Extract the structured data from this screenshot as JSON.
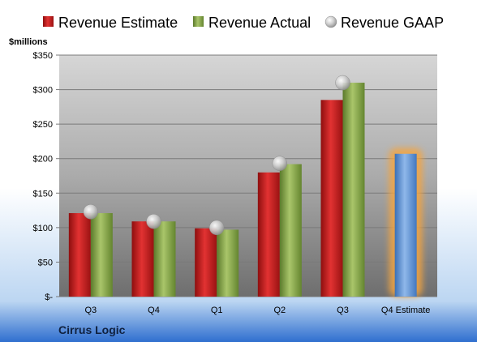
{
  "chart_data": {
    "type": "bar",
    "ylabel": "$millions",
    "ylim": [
      0,
      350
    ],
    "y_ticks": [
      {
        "value": 0,
        "label": "$-"
      },
      {
        "value": 50,
        "label": "$50"
      },
      {
        "value": 100,
        "label": "$100"
      },
      {
        "value": 150,
        "label": "$150"
      },
      {
        "value": 200,
        "label": "$200"
      },
      {
        "value": 250,
        "label": "$250"
      },
      {
        "value": 300,
        "label": "$300"
      },
      {
        "value": 350,
        "label": "$350"
      }
    ],
    "categories": [
      "Q3",
      "Q4",
      "Q1",
      "Q2",
      "Q3",
      "Q4 Estimate"
    ],
    "series": [
      {
        "name": "Revenue Estimate",
        "kind": "bar",
        "color": "#cc1c1c",
        "values": [
          121,
          109,
          99,
          180,
          285,
          null
        ]
      },
      {
        "name": "Revenue Actual",
        "kind": "bar",
        "color": "#8aaa48",
        "values": [
          121,
          109,
          97,
          192,
          310,
          null
        ]
      },
      {
        "name": "Revenue GAAP",
        "kind": "marker",
        "color": "#b8b8b8",
        "values": [
          123,
          109,
          100,
          193,
          310,
          null
        ]
      },
      {
        "name": "Q4 Estimate",
        "kind": "bar",
        "color": "#5b8fd1",
        "highlight": "#f5a540",
        "values": [
          null,
          null,
          null,
          null,
          null,
          207
        ]
      }
    ],
    "legend_position": "top",
    "grid": true,
    "footer": "Cirrus Logic"
  }
}
